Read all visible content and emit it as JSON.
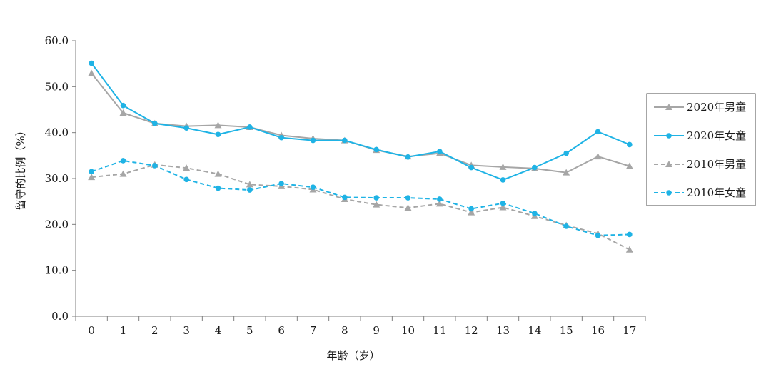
{
  "chart_data": {
    "type": "line",
    "title": "",
    "xlabel": "年龄（岁）",
    "ylabel": "留守的比例（%）",
    "ylim": [
      0,
      60
    ],
    "y_ticks": [
      "0.0",
      "10.0",
      "20.0",
      "30.0",
      "40.0",
      "50.0",
      "60.0"
    ],
    "categories": [
      "0",
      "1",
      "2",
      "3",
      "4",
      "5",
      "6",
      "7",
      "8",
      "9",
      "10",
      "11",
      "12",
      "13",
      "14",
      "15",
      "16",
      "17"
    ],
    "grid": false,
    "legend_position": "right",
    "series": [
      {
        "name": "2020年男童",
        "color": "#a6a6a6",
        "line_style": "solid",
        "marker": "triangle",
        "values": [
          52.9,
          44.3,
          42.0,
          41.4,
          41.6,
          41.2,
          39.4,
          38.7,
          38.3,
          36.2,
          34.8,
          35.5,
          32.9,
          32.5,
          32.2,
          31.3,
          34.8,
          32.7
        ]
      },
      {
        "name": "2020年女童",
        "color": "#1fb3e5",
        "line_style": "solid",
        "marker": "circle",
        "values": [
          55.1,
          45.9,
          42.0,
          41.0,
          39.6,
          41.2,
          38.9,
          38.3,
          38.3,
          36.3,
          34.7,
          35.9,
          32.4,
          29.7,
          32.4,
          35.5,
          40.2,
          37.4
        ]
      },
      {
        "name": "2010年男童",
        "color": "#a6a6a6",
        "line_style": "dashed",
        "marker": "triangle",
        "values": [
          30.3,
          31.0,
          33.0,
          32.3,
          31.0,
          28.7,
          28.3,
          27.6,
          25.5,
          24.3,
          23.6,
          24.5,
          22.6,
          23.7,
          21.8,
          19.8,
          18.0,
          14.5
        ]
      },
      {
        "name": "2010年女童",
        "color": "#1fb3e5",
        "line_style": "dashed",
        "marker": "circle",
        "values": [
          31.5,
          33.9,
          32.8,
          29.8,
          27.9,
          27.5,
          28.9,
          28.1,
          25.9,
          25.8,
          25.8,
          25.5,
          23.4,
          24.6,
          22.4,
          19.6,
          17.6,
          17.8
        ]
      }
    ]
  }
}
